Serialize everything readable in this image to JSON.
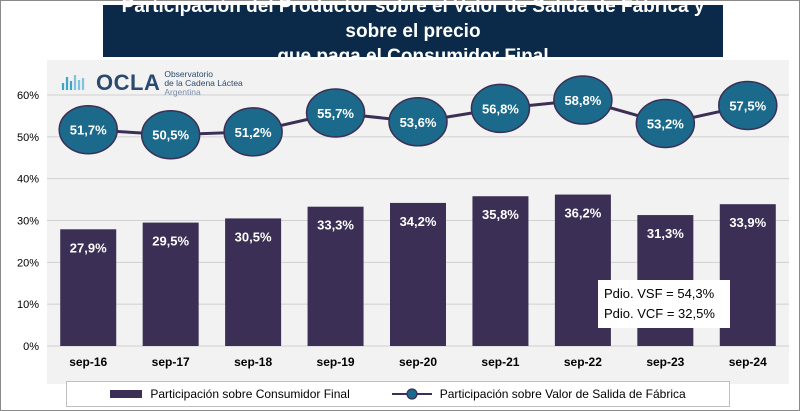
{
  "title": {
    "line1": "Participación del Productor sobre el Valor de Salida de Fábrica y sobre el precio",
    "line2": "que paga el Consumidor Final"
  },
  "logo": {
    "word": "OCLA",
    "line1": "Observatorio",
    "line2": "de la Cadena Láctea",
    "line3": "Argentina"
  },
  "note": {
    "vsf": "Pdio. VSF = 54,3%",
    "vcf": "Pdio. VCF = 32,5%"
  },
  "chart_data": {
    "type": "bar",
    "title": "Participación del Productor sobre el Valor de Salida de Fábrica y sobre el precio que paga el Consumidor Final",
    "categories": [
      "sep-16",
      "sep-17",
      "sep-18",
      "sep-19",
      "sep-20",
      "sep-21",
      "sep-22",
      "sep-23",
      "sep-24"
    ],
    "series": [
      {
        "name": "Participación sobre Consumidor Final",
        "kind": "bar",
        "color": "#3b2f55",
        "values": [
          27.9,
          29.5,
          30.5,
          33.3,
          34.2,
          35.8,
          36.2,
          31.3,
          33.9
        ],
        "labels": [
          "27,9%",
          "29,5%",
          "30,5%",
          "33,3%",
          "34,2%",
          "35,8%",
          "36,2%",
          "31,3%",
          "33,9%"
        ]
      },
      {
        "name": "Participación sobre Valor de Salida de Fábrica",
        "kind": "line",
        "color": "#1b6a8c",
        "line_color": "#3b2f55",
        "values": [
          51.7,
          50.5,
          51.2,
          55.7,
          53.6,
          56.8,
          58.8,
          53.2,
          57.5
        ],
        "labels": [
          "51,7%",
          "50,5%",
          "51,2%",
          "55,7%",
          "53,6%",
          "56,8%",
          "58,8%",
          "53,2%",
          "57,5%"
        ]
      }
    ],
    "y_ticks": [
      0,
      10,
      20,
      30,
      40,
      50,
      60
    ],
    "y_tick_labels": [
      "0%",
      "10%",
      "20%",
      "30%",
      "40%",
      "50%",
      "60%"
    ],
    "ylim": [
      0,
      60
    ],
    "xlabel": "",
    "ylabel": "",
    "grid": true,
    "legend_position": "bottom"
  }
}
